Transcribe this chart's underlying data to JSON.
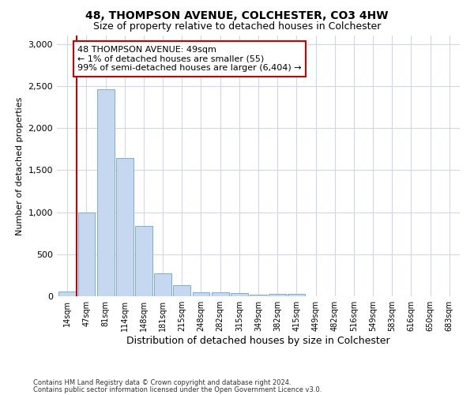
{
  "title1": "48, THOMPSON AVENUE, COLCHESTER, CO3 4HW",
  "title2": "Size of property relative to detached houses in Colchester",
  "xlabel": "Distribution of detached houses by size in Colchester",
  "ylabel": "Number of detached properties",
  "categories": [
    "14sqm",
    "47sqm",
    "81sqm",
    "114sqm",
    "148sqm",
    "181sqm",
    "215sqm",
    "248sqm",
    "282sqm",
    "315sqm",
    "349sqm",
    "382sqm",
    "415sqm",
    "449sqm",
    "482sqm",
    "516sqm",
    "549sqm",
    "583sqm",
    "616sqm",
    "650sqm",
    "683sqm"
  ],
  "values": [
    55,
    1000,
    2460,
    1640,
    840,
    275,
    130,
    50,
    45,
    35,
    20,
    25,
    25,
    0,
    0,
    0,
    0,
    0,
    0,
    0,
    0
  ],
  "bar_color": "#c5d8f0",
  "bar_edge_color": "#7aafd4",
  "vline_color": "#cc0000",
  "annotation_text": "48 THOMPSON AVENUE: 49sqm\n← 1% of detached houses are smaller (55)\n99% of semi-detached houses are larger (6,404) →",
  "annotation_box_color": "white",
  "annotation_box_edge": "#cc0000",
  "ylim": [
    0,
    3100
  ],
  "yticks": [
    0,
    500,
    1000,
    1500,
    2000,
    2500,
    3000
  ],
  "footer1": "Contains HM Land Registry data © Crown copyright and database right 2024.",
  "footer2": "Contains public sector information licensed under the Open Government Licence v3.0.",
  "bg_color": "#ffffff",
  "grid_color": "#d0d8e8",
  "title1_fontsize": 10,
  "title2_fontsize": 9,
  "tick_fontsize": 7,
  "ylabel_fontsize": 8,
  "xlabel_fontsize": 9,
  "annotation_fontsize": 8,
  "footer_fontsize": 6
}
